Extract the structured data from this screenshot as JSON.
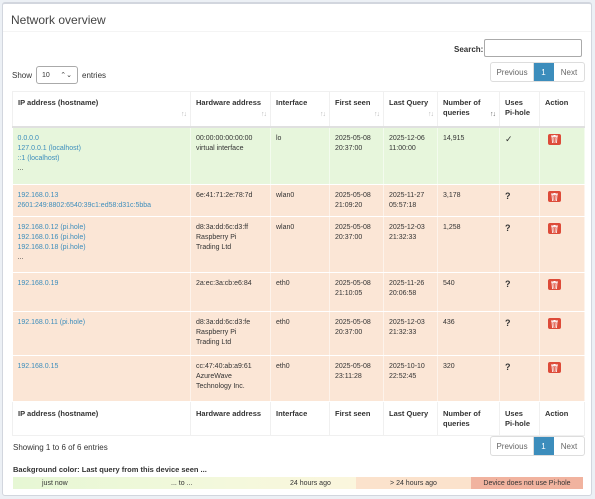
{
  "title": "Network overview",
  "search": {
    "label": "Search:",
    "value": ""
  },
  "length": {
    "show": "Show",
    "value": "10",
    "entries": "entries"
  },
  "pager": {
    "previous": "Previous",
    "page": "1",
    "next": "Next"
  },
  "columns": [
    "IP address (hostname)",
    "Hardware address",
    "Interface",
    "First seen",
    "Last Query",
    "Number of queries",
    "Uses Pi-hole",
    "Action"
  ],
  "rows": [
    {
      "ips": [
        "0.0.0.0",
        "127.0.0.1 (localhost)",
        "::1 (localhost)",
        "..."
      ],
      "hw": [
        "00:00:00:00:00:00",
        "virtual interface"
      ],
      "iface": "lo",
      "first": [
        "2025-05-08",
        "20:37:00"
      ],
      "last": [
        "2025-12-06",
        "11:00:00"
      ],
      "queries": "14,915",
      "pihole": "✓",
      "color": "green"
    },
    {
      "ips": [
        "192.168.0.13",
        "2601:249:8802:6540:39c1:ed58:d31c:5bba"
      ],
      "hw": [
        "6e:41:71:2e:78:7d"
      ],
      "iface": "wlan0",
      "first": [
        "2025-05-08",
        "21:09:20"
      ],
      "last": [
        "2025-11-27",
        "05:57:18"
      ],
      "queries": "3,178",
      "pihole": "?",
      "color": "orange"
    },
    {
      "ips": [
        "192.168.0.12 (pi.hole)",
        "192.168.0.16 (pi.hole)",
        "192.168.0.18 (pi.hole)",
        "..."
      ],
      "hw": [
        "d8:3a:dd:6c:d3:ff",
        "Raspberry Pi",
        "Trading Ltd"
      ],
      "iface": "wlan0",
      "first": [
        "2025-05-08",
        "20:37:00"
      ],
      "last": [
        "2025-12-03",
        "21:32:33"
      ],
      "queries": "1,258",
      "pihole": "?",
      "color": "orange"
    },
    {
      "ips": [
        "192.168.0.19"
      ],
      "hw": [
        "2a:ec:3a:cb:e6:84"
      ],
      "iface": "eth0",
      "first": [
        "2025-05-08",
        "21:10:05"
      ],
      "last": [
        "2025-11-26",
        "20:06:58"
      ],
      "queries": "540",
      "pihole": "?",
      "color": "orange"
    },
    {
      "ips": [
        "192.168.0.11 (pi.hole)"
      ],
      "hw": [
        "d8:3a:dd:6c:d3:fe",
        "Raspberry Pi",
        "Trading Ltd"
      ],
      "iface": "eth0",
      "first": [
        "2025-05-08",
        "20:37:00"
      ],
      "last": [
        "2025-12-03",
        "21:32:33"
      ],
      "queries": "436",
      "pihole": "?",
      "color": "orange"
    },
    {
      "ips": [
        "192.168.0.15"
      ],
      "hw": [
        "cc:47:40:ab:a9:61",
        "AzureWave",
        "Technology Inc."
      ],
      "iface": "eth0",
      "first": [
        "2025-05-08",
        "23:11:28"
      ],
      "last": [
        "2025-10-10",
        "22:52:45"
      ],
      "queries": "320",
      "pihole": "?",
      "color": "orange"
    }
  ],
  "info": "Showing 1 to 6 of 6 entries",
  "legend": {
    "title": "Background color: Last query from this device seen ...",
    "just_now": "just now",
    "to": "... to ...",
    "hours24": "24 hours ago",
    "more24": "> 24 hours ago",
    "no_pihole": "Device does not use Pi-hole"
  },
  "colors": {
    "accent": "#3c8dbc",
    "recent": "#e7f6dc",
    "old": "#fbe6d6",
    "no_pihole": "#f1b39f",
    "delete": "#dd4b39"
  }
}
